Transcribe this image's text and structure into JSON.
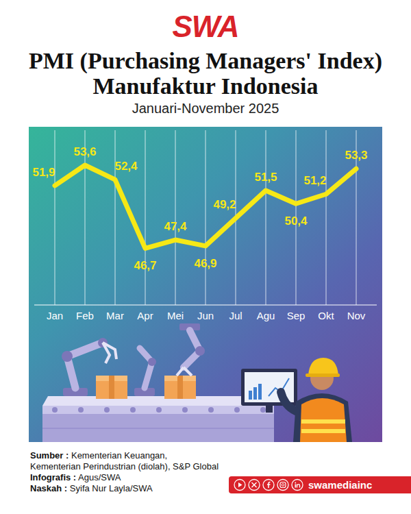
{
  "header": {
    "logo": "SWA"
  },
  "chart_data": {
    "type": "line",
    "title": "PMI (Purchasing Managers' Index) Manufaktur Indonesia",
    "subtitle": "Januari-November 2025",
    "categories": [
      "Jan",
      "Feb",
      "Mar",
      "Apr",
      "Mei",
      "Jun",
      "Jul",
      "Agu",
      "Sep",
      "Okt",
      "Nov"
    ],
    "values": [
      51.9,
      53.6,
      52.4,
      46.7,
      47.4,
      46.9,
      49.2,
      51.5,
      50.4,
      51.2,
      53.3
    ],
    "value_labels": [
      "51,9",
      "53,6",
      "52,4",
      "46,7",
      "47,4",
      "46,9",
      "49,2",
      "51,5",
      "50,4",
      "51,2",
      "53,3"
    ],
    "color": "#f6e816",
    "ylim": [
      42,
      56.5
    ],
    "grid": true,
    "data_labels": true,
    "tick_labels": "x",
    "marker": "none",
    "line_style": "solid"
  },
  "footer": {
    "credits": [
      {
        "label": "Sumber :",
        "lines": [
          "Kementerian Keuangan,",
          "Kementerian Perindustrian (diolah), S&P Global"
        ]
      },
      {
        "label": "Infografis :",
        "lines": [
          "Agus/SWA"
        ]
      },
      {
        "label": "Naskah :",
        "lines": [
          "Syifa Nur Layla/SWA"
        ]
      }
    ],
    "social": "swamediainc"
  }
}
